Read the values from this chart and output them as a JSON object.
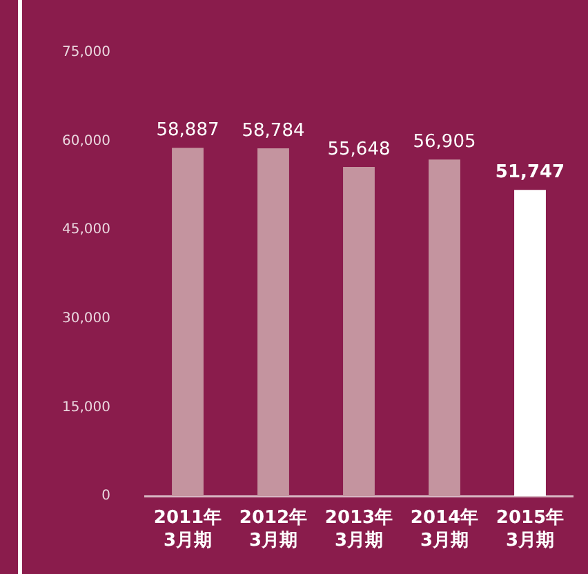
{
  "chart_data": {
    "type": "bar",
    "categories": [
      "2011年\n3月期",
      "2012年\n3月期",
      "2013年\n3月期",
      "2014年\n3月期",
      "2015年\n3月期"
    ],
    "values": [
      58887,
      58784,
      55648,
      56905,
      51747
    ],
    "value_labels": [
      "58,887",
      "58,784",
      "55,648",
      "56,905",
      "51,747"
    ],
    "colors": [
      "#c4949f",
      "#c4949f",
      "#c4949f",
      "#c4949f",
      "#ffffff"
    ],
    "ylim": [
      0,
      75000
    ],
    "yticks": [
      0,
      {
        "value": 15000,
        "label": "15,000"
      },
      {
        "value": 30000,
        "label": "30,000"
      },
      {
        "value": 45000,
        "label": "45,000"
      },
      {
        "value": 60000,
        "label": "60,000"
      },
      {
        "value": 75000,
        "label": "75,000"
      }
    ],
    "grid": false,
    "legend": false
  }
}
